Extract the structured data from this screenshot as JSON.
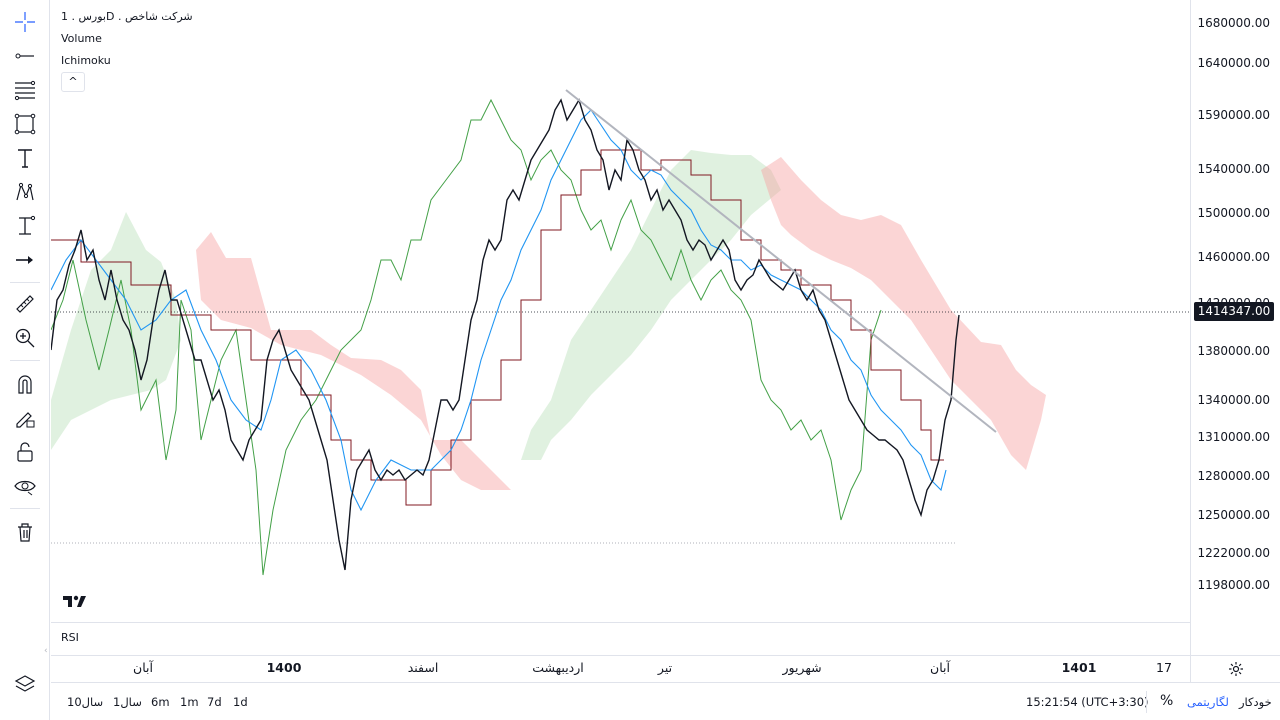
{
  "legend": {
    "symbol_line": "بورس . 1D . شرکت شاخص",
    "volume": "Volume",
    "ichimoku": "Ichimoku",
    "collapse": "^"
  },
  "price_axis": {
    "labels": [
      "1680000.00",
      "1640000.00",
      "1590000.00",
      "1540000.00",
      "1500000.00",
      "1460000.00",
      "1420000.00",
      "1380000.00",
      "1340000.00",
      "1310000.00",
      "1280000.00",
      "1250000.00",
      "1222000.00",
      "1198000.00"
    ],
    "last_price": "1414347.00"
  },
  "rsi": {
    "label": "RSI"
  },
  "time_axis": {
    "labels": [
      "آبان",
      "1400",
      "اسفند",
      "اردیبهشت",
      "تیر",
      "شهریور",
      "آبان",
      "1401",
      "17"
    ]
  },
  "bottom": {
    "ranges": [
      "10سال",
      "1سال",
      "6m",
      "1m",
      "7d",
      "1d"
    ],
    "clock": "15:21:54 (UTC+3:30)",
    "percent": "%",
    "log": "لگاریتمی",
    "auto": "خودکار"
  },
  "colors": {
    "candle": "#131722",
    "conversion_line": "#2196f3",
    "base_line": "#801922",
    "lagging_span": "#43a047",
    "cloud_bull": "#a5d6a7",
    "cloud_bear": "#f7a1a1",
    "trend_line": "#b2b5be",
    "accent": "#2962ff"
  },
  "toolbar_icons": [
    "crosshair-icon",
    "trend-line-icon",
    "fib-icon",
    "rectangle-icon",
    "text-icon",
    "pattern-icon",
    "measure-bar-icon",
    "arrow-icon",
    "ruler-icon",
    "zoom-in-icon",
    "magnet-icon",
    "lock-draw-icon",
    "lock-icon",
    "eye-icon",
    "trash-icon",
    "layers-icon"
  ],
  "chart_data": {
    "type": "line",
    "ylim": [
      1198000,
      1680000
    ],
    "price_ticks": [
      1680000,
      1640000,
      1590000,
      1540000,
      1500000,
      1460000,
      1420000,
      1380000,
      1340000,
      1310000,
      1280000,
      1250000,
      1222000,
      1198000
    ],
    "last_price": 1414347,
    "series": [
      {
        "name": "",
        "x": [
          0,
          20,
          40,
          60,
          80,
          100,
          120,
          140,
          160,
          180,
          200,
          220,
          240,
          260,
          280,
          300,
          320,
          340,
          360,
          380,
          400,
          420,
          440,
          460,
          480,
          500,
          520,
          540,
          560,
          580,
          600,
          620,
          640,
          660,
          680,
          700,
          720,
          740,
          760,
          780,
          800,
          820,
          840,
          860,
          880,
          900,
          920,
          940,
          960,
          980,
          1000,
          1020,
          1040,
          1060,
          1080,
          1100,
          1120,
          1140,
          1160,
          1180,
          1200,
          1220,
          1240,
          1260,
          1280,
          1300,
          1320,
          1340,
          1360,
          1380,
          1400,
          1420,
          1440,
          1460,
          1480,
          1500,
          1520,
          1540,
          1560,
          1580,
          1600,
          1620,
          1640,
          1660,
          1680,
          1700,
          1720,
          1740,
          1760,
          1780,
          1800,
          1820,
          1840,
          1860,
          1880,
          1900
        ],
        "values": [
          1380000,
          1450000,
          1490000,
          1430000,
          1340000,
          1445000,
          1410000,
          1340000,
          1290000,
          1320000,
          1395000,
          1340000,
          1280000,
          1300000,
          1230000,
          1200000,
          1280000,
          1300000,
          1290000,
          1280000,
          1320000,
          1340000,
          1330000,
          1380000,
          1450000,
          1480000,
          1510000,
          1540000,
          1565000,
          1600000,
          1570000,
          1550000,
          1520000,
          1560000,
          1570000,
          1545000,
          1510000,
          1500000,
          1480000,
          1460000,
          1440000,
          1430000,
          1470000,
          1450000,
          1440000,
          1400000,
          1390000,
          1340000,
          1320000,
          1310000,
          1300000,
          1250000,
          1300000,
          1420000,
          1415000,
          1414347,
          null,
          null,
          null,
          null,
          null,
          null,
          null,
          null,
          null,
          null,
          null,
          null,
          null,
          null,
          null,
          null,
          null,
          null,
          null,
          null,
          null,
          null,
          null,
          null,
          null,
          null,
          null,
          null,
          null,
          null,
          null,
          null,
          null,
          null,
          null,
          null,
          null,
          null,
          null,
          null
        ]
      }
    ]
  }
}
